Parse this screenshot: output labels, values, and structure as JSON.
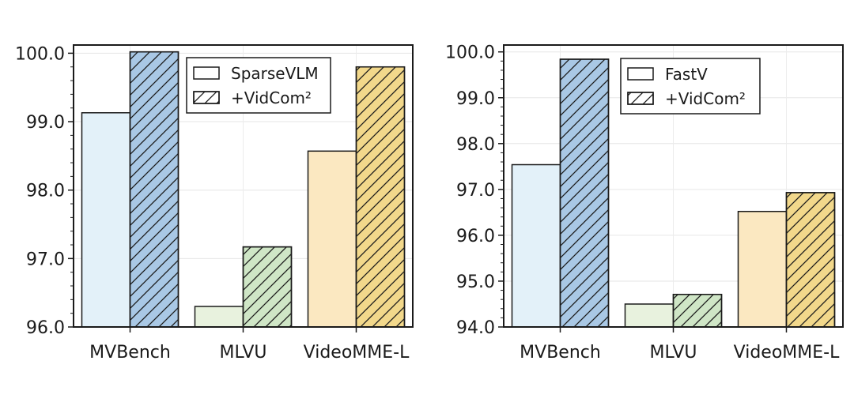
{
  "chart_data": [
    {
      "type": "bar",
      "categories": [
        "MVBench",
        "MLVU",
        "VideoMME-L"
      ],
      "series": [
        {
          "name": "SparseVLM",
          "values": [
            99.13,
            96.3,
            98.57
          ]
        },
        {
          "name": "+VidCom²",
          "values": [
            100.02,
            97.17,
            99.8
          ]
        }
      ],
      "ylim": [
        96.0,
        100.12
      ],
      "yticks": [
        "96.0",
        "97.0",
        "98.0",
        "99.0",
        "100.0"
      ],
      "grid": true,
      "legend": "top-right",
      "colors": {
        "base": [
          "#e3f1f9",
          "#e8f2de",
          "#fbe8c1"
        ],
        "hatched": [
          "#a9c8e5",
          "#cfe6c6",
          "#f2d88b"
        ]
      }
    },
    {
      "type": "bar",
      "categories": [
        "MVBench",
        "MLVU",
        "VideoMME-L"
      ],
      "series": [
        {
          "name": "FastV",
          "values": [
            97.54,
            94.5,
            96.52
          ]
        },
        {
          "name": "+VidCom²",
          "values": [
            99.84,
            94.71,
            96.93
          ]
        }
      ],
      "ylim": [
        94.0,
        100.15
      ],
      "yticks": [
        "94.0",
        "95.0",
        "96.0",
        "97.0",
        "98.0",
        "99.0",
        "100.0"
      ],
      "grid": true,
      "legend": "top-right",
      "colors": {
        "base": [
          "#e3f1f9",
          "#e8f2de",
          "#fbe8c1"
        ],
        "hatched": [
          "#a9c8e5",
          "#cfe6c6",
          "#f2d88b"
        ]
      }
    }
  ]
}
